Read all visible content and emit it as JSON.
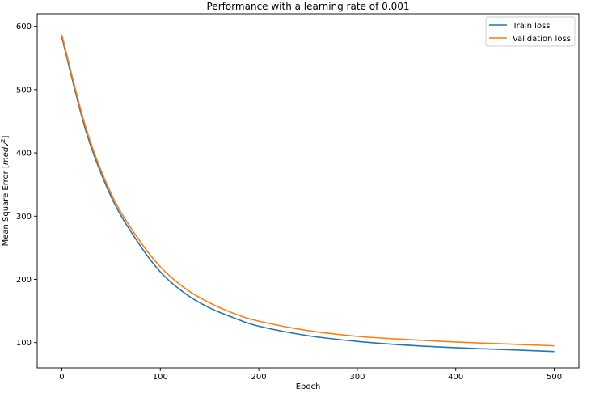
{
  "chart_data": {
    "type": "line",
    "title": "Performance with a learning rate of 0.001",
    "xlabel": "Epoch",
    "ylabel_prefix": "Mean Square Error [",
    "ylabel_math": "medv",
    "ylabel_exp": "2",
    "ylabel_suffix": "]",
    "xlim": [
      -25,
      525
    ],
    "ylim": [
      60,
      620
    ],
    "xticks": [
      0,
      100,
      200,
      300,
      400,
      500
    ],
    "yticks": [
      100,
      200,
      300,
      400,
      500,
      600
    ],
    "grid": false,
    "legend_position": "upper-right",
    "series": [
      {
        "name": "Train loss",
        "color": "#1f77b4",
        "x": [
          0,
          25,
          50,
          75,
          100,
          125,
          150,
          175,
          200,
          250,
          300,
          350,
          400,
          450,
          500
        ],
        "y": [
          583,
          432,
          331,
          264,
          212,
          178,
          155,
          139,
          126,
          111,
          102,
          96,
          92,
          89,
          86
        ]
      },
      {
        "name": "Validation loss",
        "color": "#ff7f0e",
        "x": [
          0,
          25,
          50,
          75,
          100,
          125,
          150,
          175,
          200,
          250,
          300,
          350,
          400,
          450,
          500
        ],
        "y": [
          587,
          437,
          336,
          270,
          220,
          186,
          163,
          146,
          134,
          119,
          110,
          105,
          101,
          98,
          95
        ]
      }
    ]
  }
}
